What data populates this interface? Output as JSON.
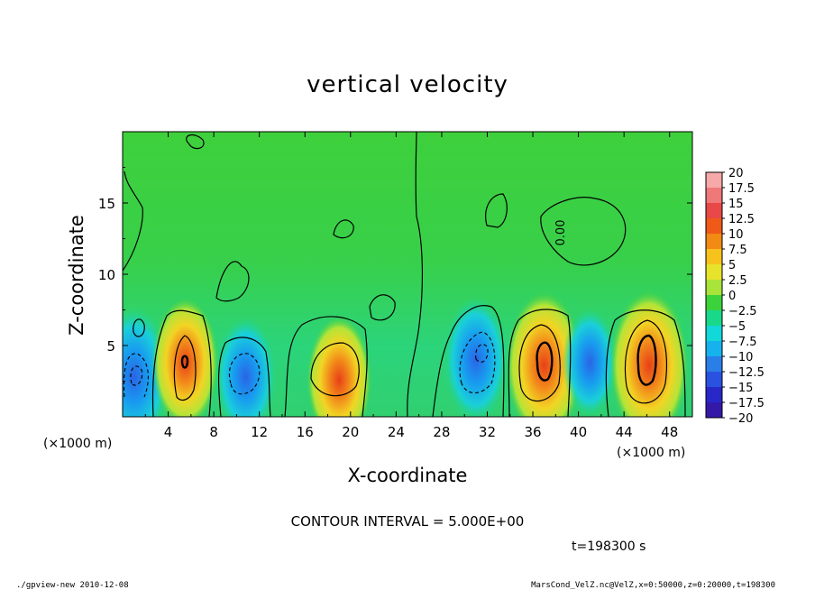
{
  "chart_data": {
    "type": "heatmap",
    "title": "vertical velocity",
    "xlabel": "X-coordinate",
    "ylabel": "Z-coordinate",
    "x_unit": "(×1000 m)",
    "y_unit": "(×1000 m)",
    "xlim": [
      0,
      50
    ],
    "ylim": [
      0,
      20
    ],
    "x_ticks": [
      "4",
      "8",
      "12",
      "16",
      "20",
      "24",
      "28",
      "32",
      "36",
      "40",
      "44",
      "48"
    ],
    "y_ticks": [
      "5",
      "10",
      "15"
    ],
    "contour_interval": "CONTOUR INTERVAL = 5.000E+00",
    "contour_label": "0.00",
    "colorbar": {
      "min": -20,
      "max": 20,
      "levels": [
        "20",
        "17.5",
        "15",
        "12.5",
        "10",
        "7.5",
        "5",
        "2.5",
        "0",
        "−2.5",
        "−5",
        "−7.5",
        "−10",
        "−12.5",
        "−15",
        "−17.5",
        "−20"
      ],
      "colors": [
        "#f7a8a8",
        "#ef7878",
        "#e84848",
        "#ef5a18",
        "#f28a14",
        "#f7c21c",
        "#e7e32a",
        "#a8e43a",
        "#3cd23c",
        "#18d98a",
        "#12d8d8",
        "#16b2ee",
        "#2a7ee8",
        "#2a52e0",
        "#2828c8",
        "#3418a8",
        "#6a1aa8"
      ]
    },
    "features": [
      {
        "x": 1.0,
        "z": 2.8,
        "w": -12.0
      },
      {
        "x": 5.5,
        "z": 3.8,
        "w": 10.0
      },
      {
        "x": 10.8,
        "z": 2.8,
        "w": -8.5
      },
      {
        "x": 19.0,
        "z": 2.6,
        "w": 9.5
      },
      {
        "x": 31.0,
        "z": 4.0,
        "w": -9.5
      },
      {
        "x": 37.0,
        "z": 3.6,
        "w": 13.0
      },
      {
        "x": 41.0,
        "z": 3.8,
        "w": -6.5
      },
      {
        "x": 46.2,
        "z": 3.6,
        "w": 13.5
      }
    ],
    "time_label": "t=198300 s"
  },
  "footer": {
    "left": "./gpview-new  2010-12-08",
    "right": "MarsCond_VelZ.nc@VelZ,x=0:50000,z=0:20000,t=198300"
  }
}
